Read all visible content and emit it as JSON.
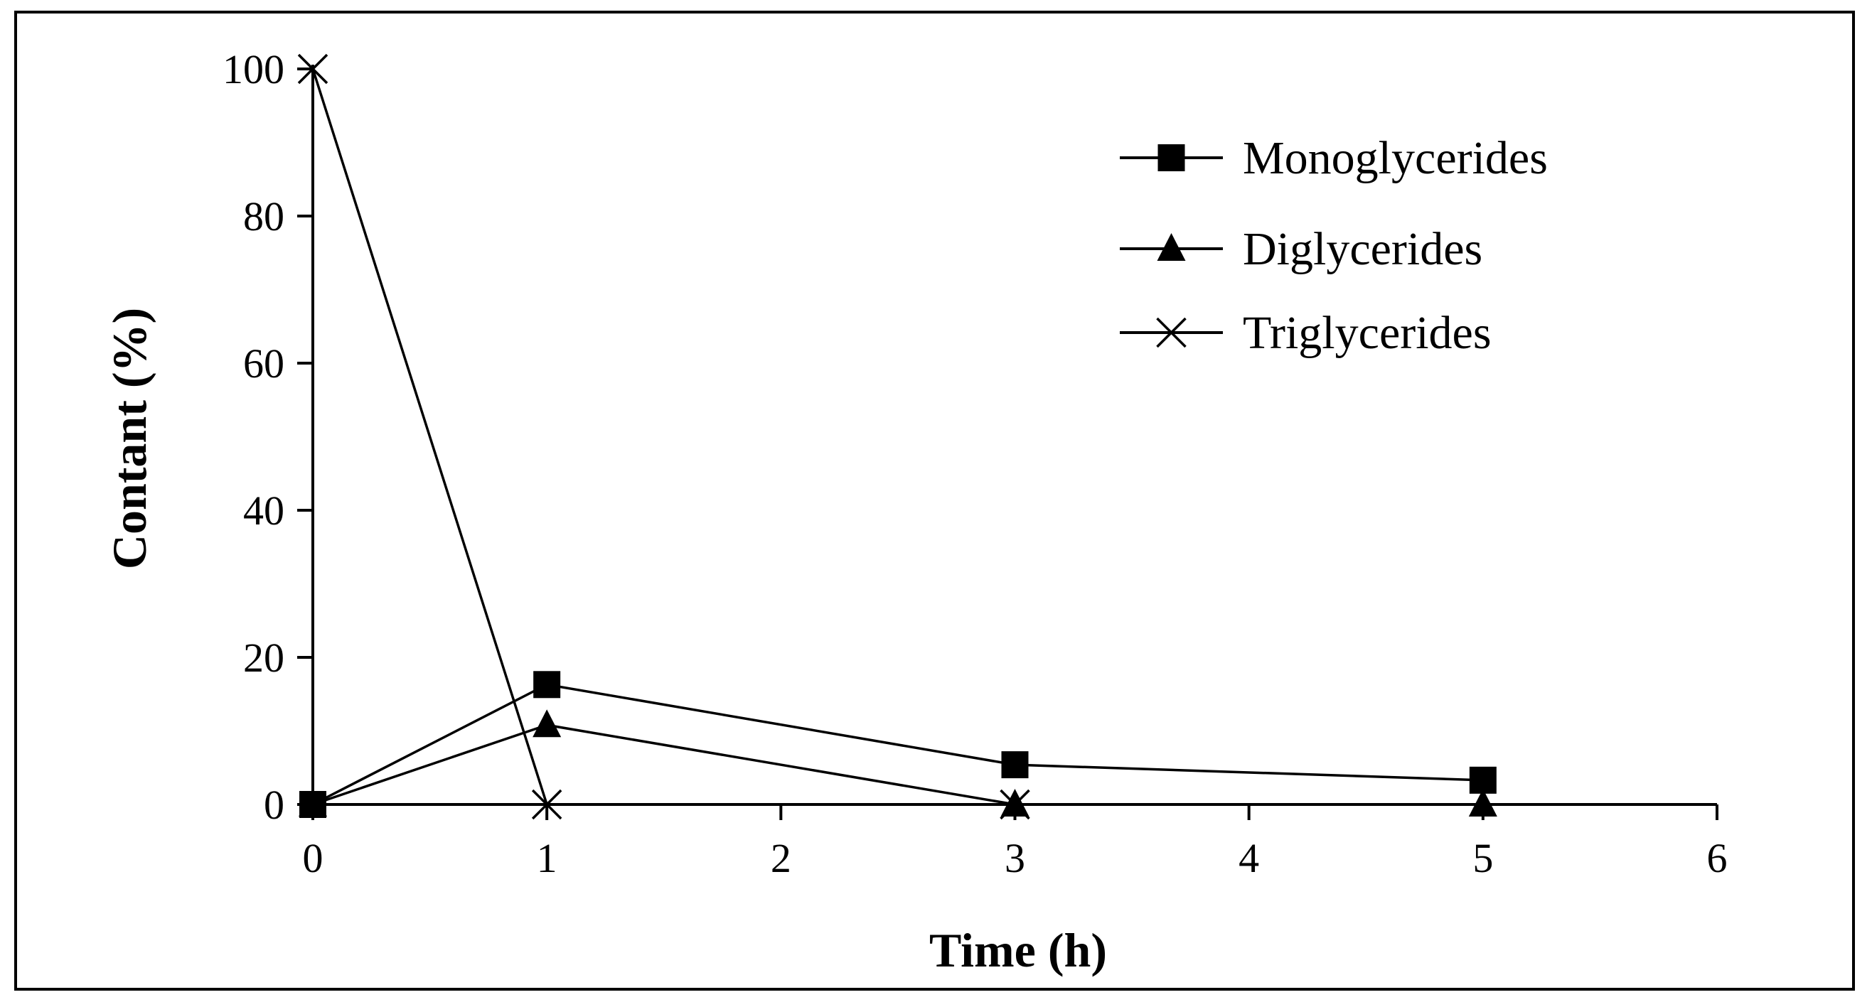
{
  "chart_data": {
    "type": "line",
    "title": "",
    "xlabel": "Time (h)",
    "ylabel": "Contant  (%)",
    "xlim": [
      0,
      6
    ],
    "ylim": [
      0,
      100
    ],
    "xticks": [
      0,
      1,
      2,
      3,
      4,
      5,
      6
    ],
    "yticks": [
      0,
      20,
      40,
      60,
      80,
      100
    ],
    "grid": false,
    "legend_position": "top-right",
    "series": [
      {
        "name": "Monoglycerides",
        "marker": "square",
        "color": "#000000",
        "x": [
          0,
          1,
          3,
          5
        ],
        "y": [
          0,
          16.3,
          5.4,
          3.3
        ]
      },
      {
        "name": "Diglycerides",
        "marker": "triangle",
        "color": "#000000",
        "x": [
          0,
          1,
          3,
          5
        ],
        "y": [
          0,
          10.8,
          0,
          0
        ]
      },
      {
        "name": "Triglycerides",
        "marker": "x",
        "color": "#000000",
        "x": [
          0,
          1,
          3
        ],
        "y": [
          100,
          0,
          0
        ]
      }
    ]
  }
}
